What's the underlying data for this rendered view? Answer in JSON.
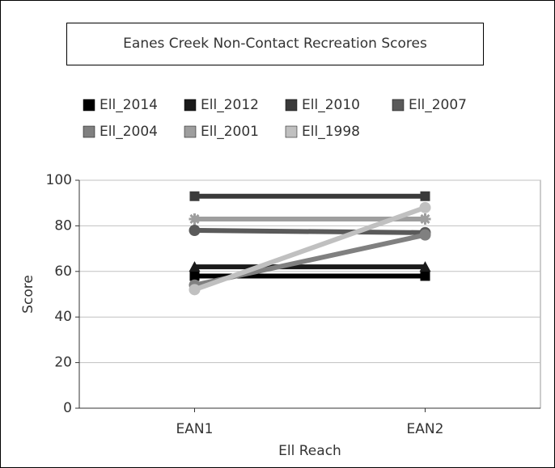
{
  "chart_data": {
    "type": "line",
    "title": "Eanes Creek Non-Contact Recreation Scores",
    "x_label": "Ell Reach",
    "y_label": "Score",
    "categories": [
      "EAN1",
      "EAN2"
    ],
    "ylim": [
      0,
      100
    ],
    "yticks": [
      0,
      20,
      40,
      60,
      80,
      100
    ],
    "grid": true,
    "series": [
      {
        "name": "Ell_2014",
        "color": "#000000",
        "marker": "square",
        "values": [
          58,
          58
        ]
      },
      {
        "name": "Ell_2012",
        "color": "#1a1a1a",
        "marker": "triangle",
        "values": [
          62,
          62
        ]
      },
      {
        "name": "Ell_2010",
        "color": "#3a3a3a",
        "marker": "square",
        "values": [
          93,
          93
        ]
      },
      {
        "name": "Ell_2007",
        "color": "#5a5a5a",
        "marker": "circle",
        "values": [
          78,
          77
        ]
      },
      {
        "name": "Ell_2004",
        "color": "#808080",
        "marker": "circle",
        "values": [
          54,
          76
        ]
      },
      {
        "name": "Ell_2001",
        "color": "#9e9e9e",
        "marker": "star",
        "values": [
          83,
          83
        ]
      },
      {
        "name": "Ell_1998",
        "color": "#c0c0c0",
        "marker": "circle",
        "values": [
          52,
          88
        ]
      }
    ]
  }
}
